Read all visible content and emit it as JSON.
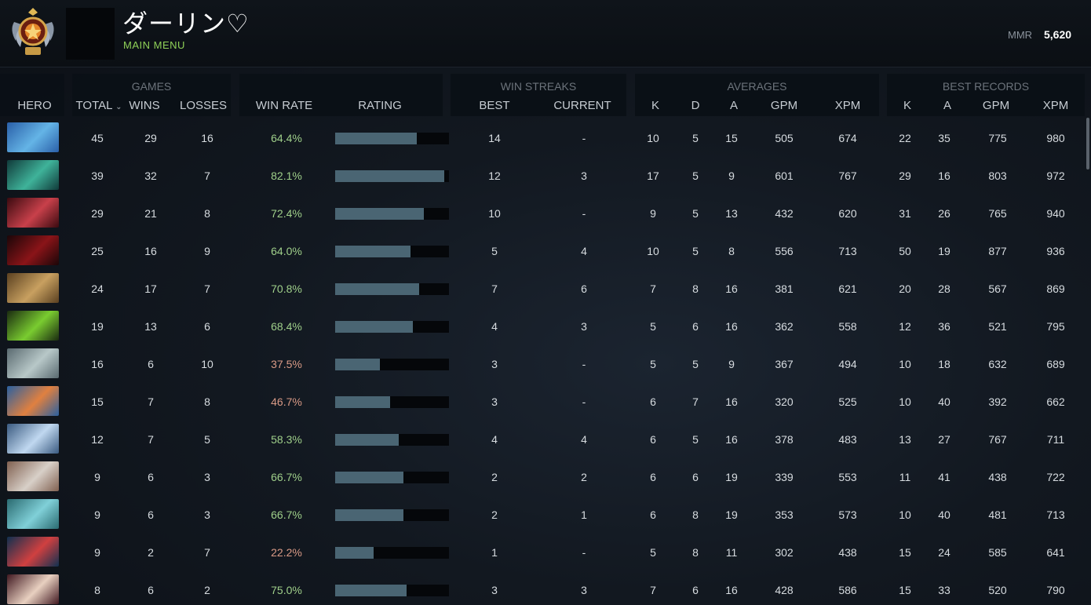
{
  "player": {
    "name": "ダーリン♡",
    "main_menu": "MAIN MENU",
    "mmr_label": "MMR",
    "mmr_value": "5,620"
  },
  "groups": {
    "games": "GAMES",
    "win_streaks": "WIN STREAKS",
    "averages": "AVERAGES",
    "best_records": "BEST RECORDS"
  },
  "columns": {
    "hero": "HERO",
    "total": "TOTAL",
    "wins": "WINS",
    "losses": "LOSSES",
    "win_rate": "WIN RATE",
    "rating": "RATING",
    "streak_best": "BEST",
    "streak_current": "CURRENT",
    "avg_k": "K",
    "avg_d": "D",
    "avg_a": "A",
    "avg_gpm": "GPM",
    "avg_xpm": "XPM",
    "best_k": "K",
    "best_a": "A",
    "best_gpm": "GPM",
    "best_xpm": "XPM"
  },
  "colors": {
    "winrate_high": "#9fcf8a",
    "winrate_low": "#d99a86",
    "rating_bar": "#4a6573"
  },
  "rows": [
    {
      "total": "45",
      "wins": "29",
      "losses": "16",
      "win_rate": "64.4%",
      "rating": 0.72,
      "streak_best": "14",
      "streak_current": "-",
      "avg_k": "10",
      "avg_d": "5",
      "avg_a": "15",
      "avg_gpm": "505",
      "avg_xpm": "674",
      "best_k": "22",
      "best_a": "35",
      "best_gpm": "775",
      "best_xpm": "980",
      "portrait": [
        "#2a5fa8",
        "#64b4e6"
      ],
      "winrate_good": true
    },
    {
      "total": "39",
      "wins": "32",
      "losses": "7",
      "win_rate": "82.1%",
      "rating": 0.96,
      "streak_best": "12",
      "streak_current": "3",
      "avg_k": "17",
      "avg_d": "5",
      "avg_a": "9",
      "avg_gpm": "601",
      "avg_xpm": "767",
      "best_k": "29",
      "best_a": "16",
      "best_gpm": "803",
      "best_xpm": "972",
      "portrait": [
        "#103a3a",
        "#3fb39a"
      ],
      "winrate_good": true
    },
    {
      "total": "29",
      "wins": "21",
      "losses": "8",
      "win_rate": "72.4%",
      "rating": 0.78,
      "streak_best": "10",
      "streak_current": "-",
      "avg_k": "9",
      "avg_d": "5",
      "avg_a": "13",
      "avg_gpm": "432",
      "avg_xpm": "620",
      "best_k": "31",
      "best_a": "26",
      "best_gpm": "765",
      "best_xpm": "940",
      "portrait": [
        "#3a0a10",
        "#c8404a"
      ],
      "winrate_good": true
    },
    {
      "total": "25",
      "wins": "16",
      "losses": "9",
      "win_rate": "64.0%",
      "rating": 0.66,
      "streak_best": "5",
      "streak_current": "4",
      "avg_k": "10",
      "avg_d": "5",
      "avg_a": "8",
      "avg_gpm": "556",
      "avg_xpm": "713",
      "best_k": "50",
      "best_a": "19",
      "best_gpm": "877",
      "best_xpm": "936",
      "portrait": [
        "#1a0608",
        "#8a1418"
      ],
      "winrate_good": true
    },
    {
      "total": "24",
      "wins": "17",
      "losses": "7",
      "win_rate": "70.8%",
      "rating": 0.74,
      "streak_best": "7",
      "streak_current": "6",
      "avg_k": "7",
      "avg_d": "8",
      "avg_a": "16",
      "avg_gpm": "381",
      "avg_xpm": "621",
      "best_k": "20",
      "best_a": "28",
      "best_gpm": "567",
      "best_xpm": "869",
      "portrait": [
        "#5a4020",
        "#c8a060"
      ],
      "winrate_good": true
    },
    {
      "total": "19",
      "wins": "13",
      "losses": "6",
      "win_rate": "68.4%",
      "rating": 0.68,
      "streak_best": "4",
      "streak_current": "3",
      "avg_k": "5",
      "avg_d": "6",
      "avg_a": "16",
      "avg_gpm": "362",
      "avg_xpm": "558",
      "best_k": "12",
      "best_a": "36",
      "best_gpm": "521",
      "best_xpm": "795",
      "portrait": [
        "#1a2a10",
        "#7acc30"
      ],
      "winrate_good": true
    },
    {
      "total": "16",
      "wins": "6",
      "losses": "10",
      "win_rate": "37.5%",
      "rating": 0.39,
      "streak_best": "3",
      "streak_current": "-",
      "avg_k": "5",
      "avg_d": "5",
      "avg_a": "9",
      "avg_gpm": "367",
      "avg_xpm": "494",
      "best_k": "10",
      "best_a": "18",
      "best_gpm": "632",
      "best_xpm": "689",
      "portrait": [
        "#5a6a70",
        "#b8c8c8"
      ],
      "winrate_good": false
    },
    {
      "total": "15",
      "wins": "7",
      "losses": "8",
      "win_rate": "46.7%",
      "rating": 0.48,
      "streak_best": "3",
      "streak_current": "-",
      "avg_k": "6",
      "avg_d": "7",
      "avg_a": "16",
      "avg_gpm": "320",
      "avg_xpm": "525",
      "best_k": "10",
      "best_a": "40",
      "best_gpm": "392",
      "best_xpm": "662",
      "portrait": [
        "#2a60a0",
        "#e08040"
      ],
      "winrate_good": false
    },
    {
      "total": "12",
      "wins": "7",
      "losses": "5",
      "win_rate": "58.3%",
      "rating": 0.56,
      "streak_best": "4",
      "streak_current": "4",
      "avg_k": "6",
      "avg_d": "5",
      "avg_a": "16",
      "avg_gpm": "378",
      "avg_xpm": "483",
      "best_k": "13",
      "best_a": "27",
      "best_gpm": "767",
      "best_xpm": "711",
      "portrait": [
        "#3a5a80",
        "#c0d8f0"
      ],
      "winrate_good": true
    },
    {
      "total": "9",
      "wins": "6",
      "losses": "3",
      "win_rate": "66.7%",
      "rating": 0.6,
      "streak_best": "2",
      "streak_current": "2",
      "avg_k": "6",
      "avg_d": "6",
      "avg_a": "19",
      "avg_gpm": "339",
      "avg_xpm": "553",
      "best_k": "11",
      "best_a": "41",
      "best_gpm": "438",
      "best_xpm": "722",
      "portrait": [
        "#806050",
        "#d8d0c8"
      ],
      "winrate_good": true
    },
    {
      "total": "9",
      "wins": "6",
      "losses": "3",
      "win_rate": "66.7%",
      "rating": 0.6,
      "streak_best": "2",
      "streak_current": "1",
      "avg_k": "6",
      "avg_d": "8",
      "avg_a": "19",
      "avg_gpm": "353",
      "avg_xpm": "573",
      "best_k": "10",
      "best_a": "40",
      "best_gpm": "481",
      "best_xpm": "713",
      "portrait": [
        "#2a6a70",
        "#80d0d8"
      ],
      "winrate_good": true
    },
    {
      "total": "9",
      "wins": "2",
      "losses": "7",
      "win_rate": "22.2%",
      "rating": 0.34,
      "streak_best": "1",
      "streak_current": "-",
      "avg_k": "5",
      "avg_d": "8",
      "avg_a": "11",
      "avg_gpm": "302",
      "avg_xpm": "438",
      "best_k": "15",
      "best_a": "24",
      "best_gpm": "585",
      "best_xpm": "641",
      "portrait": [
        "#103050",
        "#d04040"
      ],
      "winrate_good": false
    },
    {
      "total": "8",
      "wins": "6",
      "losses": "2",
      "win_rate": "75.0%",
      "rating": 0.63,
      "streak_best": "3",
      "streak_current": "3",
      "avg_k": "7",
      "avg_d": "6",
      "avg_a": "16",
      "avg_gpm": "428",
      "avg_xpm": "586",
      "best_k": "15",
      "best_a": "33",
      "best_gpm": "520",
      "best_xpm": "790",
      "portrait": [
        "#401820",
        "#e8d0c0"
      ],
      "winrate_good": true
    }
  ]
}
